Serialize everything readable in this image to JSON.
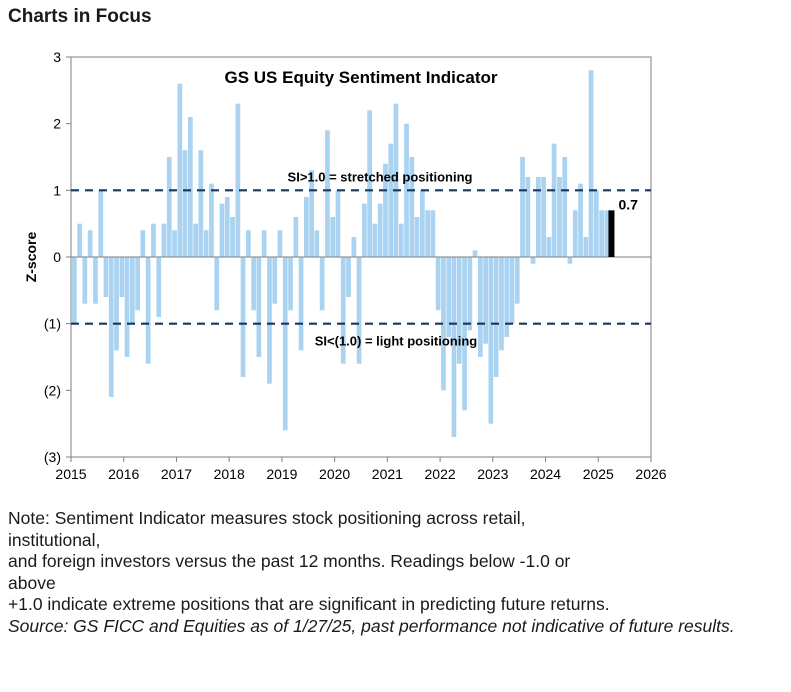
{
  "header": {
    "title": "Charts in Focus"
  },
  "chart_data": {
    "type": "bar",
    "title": "GS US Equity Sentiment Indicator",
    "ylabel": "Z-score",
    "xlabel": "",
    "xlim": [
      2015,
      2026
    ],
    "ylim": [
      -3,
      3
    ],
    "xticks": [
      "2015",
      "2016",
      "2017",
      "2018",
      "2019",
      "2020",
      "2021",
      "2022",
      "2023",
      "2024",
      "2025",
      "2026"
    ],
    "yticks": [
      {
        "value": 3,
        "label": "3"
      },
      {
        "value": 2,
        "label": "2"
      },
      {
        "value": 1,
        "label": "1"
      },
      {
        "value": 0,
        "label": "0"
      },
      {
        "value": -1,
        "label": "(1)"
      },
      {
        "value": -2,
        "label": "(2)"
      },
      {
        "value": -3,
        "label": "(3)"
      }
    ],
    "reference_lines": [
      {
        "value": 1,
        "label": "SI>1.0 = stretched positioning",
        "style": "dashed"
      },
      {
        "value": -1,
        "label": "SI<(1.0) = light positioning",
        "style": "dashed"
      }
    ],
    "latest": {
      "x": 2025.25,
      "value": 0.7,
      "label": "0.7",
      "color": "#000000"
    },
    "bar_color": "#a9d3f0",
    "grid": false,
    "series": [
      {
        "x": [
          2015.0,
          2015.1,
          2015.2,
          2015.3,
          2015.4,
          2015.5,
          2015.6,
          2015.7,
          2015.8,
          2015.9,
          2016.0,
          2016.1,
          2016.2,
          2016.3,
          2016.4,
          2016.5,
          2016.6,
          2016.7,
          2016.8,
          2016.9,
          2017.0,
          2017.1,
          2017.2,
          2017.3,
          2017.4,
          2017.5,
          2017.6,
          2017.7,
          2017.8,
          2017.9,
          2018.0,
          2018.1,
          2018.2,
          2018.3,
          2018.4,
          2018.5,
          2018.6,
          2018.7,
          2018.8,
          2018.9,
          2019.0,
          2019.1,
          2019.2,
          2019.3,
          2019.4,
          2019.5,
          2019.6,
          2019.7,
          2019.8,
          2019.9,
          2020.0,
          2020.1,
          2020.2,
          2020.3,
          2020.4,
          2020.5,
          2020.6,
          2020.7,
          2020.8,
          2020.9,
          2021.0,
          2021.1,
          2021.2,
          2021.3,
          2021.4,
          2021.5,
          2021.6,
          2021.7,
          2021.8,
          2021.9,
          2022.0,
          2022.1,
          2022.2,
          2022.3,
          2022.4,
          2022.5,
          2022.6,
          2022.7,
          2022.8,
          2022.9,
          2023.0,
          2023.1,
          2023.2,
          2023.3,
          2023.4,
          2023.5,
          2023.6,
          2023.7,
          2023.8,
          2023.9,
          2024.0,
          2024.1,
          2024.2,
          2024.3,
          2024.4,
          2024.5,
          2024.6,
          2024.7,
          2024.8,
          2024.9,
          2025.0,
          2025.1
        ],
        "values": [
          -1.0,
          0.5,
          -0.7,
          0.4,
          -0.7,
          1.0,
          -0.6,
          -2.1,
          -1.4,
          -0.6,
          -1.5,
          -1.0,
          -0.8,
          0.4,
          -1.6,
          0.5,
          -0.9,
          0.5,
          1.5,
          0.4,
          2.6,
          1.6,
          2.1,
          0.5,
          1.6,
          0.4,
          1.1,
          -0.8,
          0.8,
          0.9,
          0.6,
          2.3,
          -1.8,
          0.4,
          -0.8,
          -1.5,
          0.4,
          -1.9,
          -0.7,
          0.4,
          -2.6,
          -0.8,
          0.6,
          -1.4,
          0.9,
          1.3,
          0.4,
          -0.8,
          1.9,
          0.6,
          1.0,
          -1.6,
          -0.6,
          0.3,
          -1.6,
          0.8,
          2.2,
          0.5,
          0.8,
          1.4,
          1.7,
          2.3,
          0.5,
          2.0,
          1.5,
          0.6,
          1.0,
          0.7,
          0.7,
          -0.8,
          -2.0,
          -1.2,
          -2.7,
          -1.6,
          -2.3,
          -1.1,
          0.1,
          -1.5,
          -1.3,
          -2.5,
          -1.8,
          -1.4,
          -1.2,
          -1.0,
          -0.7,
          1.5,
          1.2,
          -0.1,
          1.2,
          1.2,
          0.3,
          1.7,
          1.2,
          1.5,
          -0.1,
          0.7,
          1.1,
          0.3,
          2.8,
          1.0,
          0.7,
          0.7
        ]
      }
    ]
  }
}
